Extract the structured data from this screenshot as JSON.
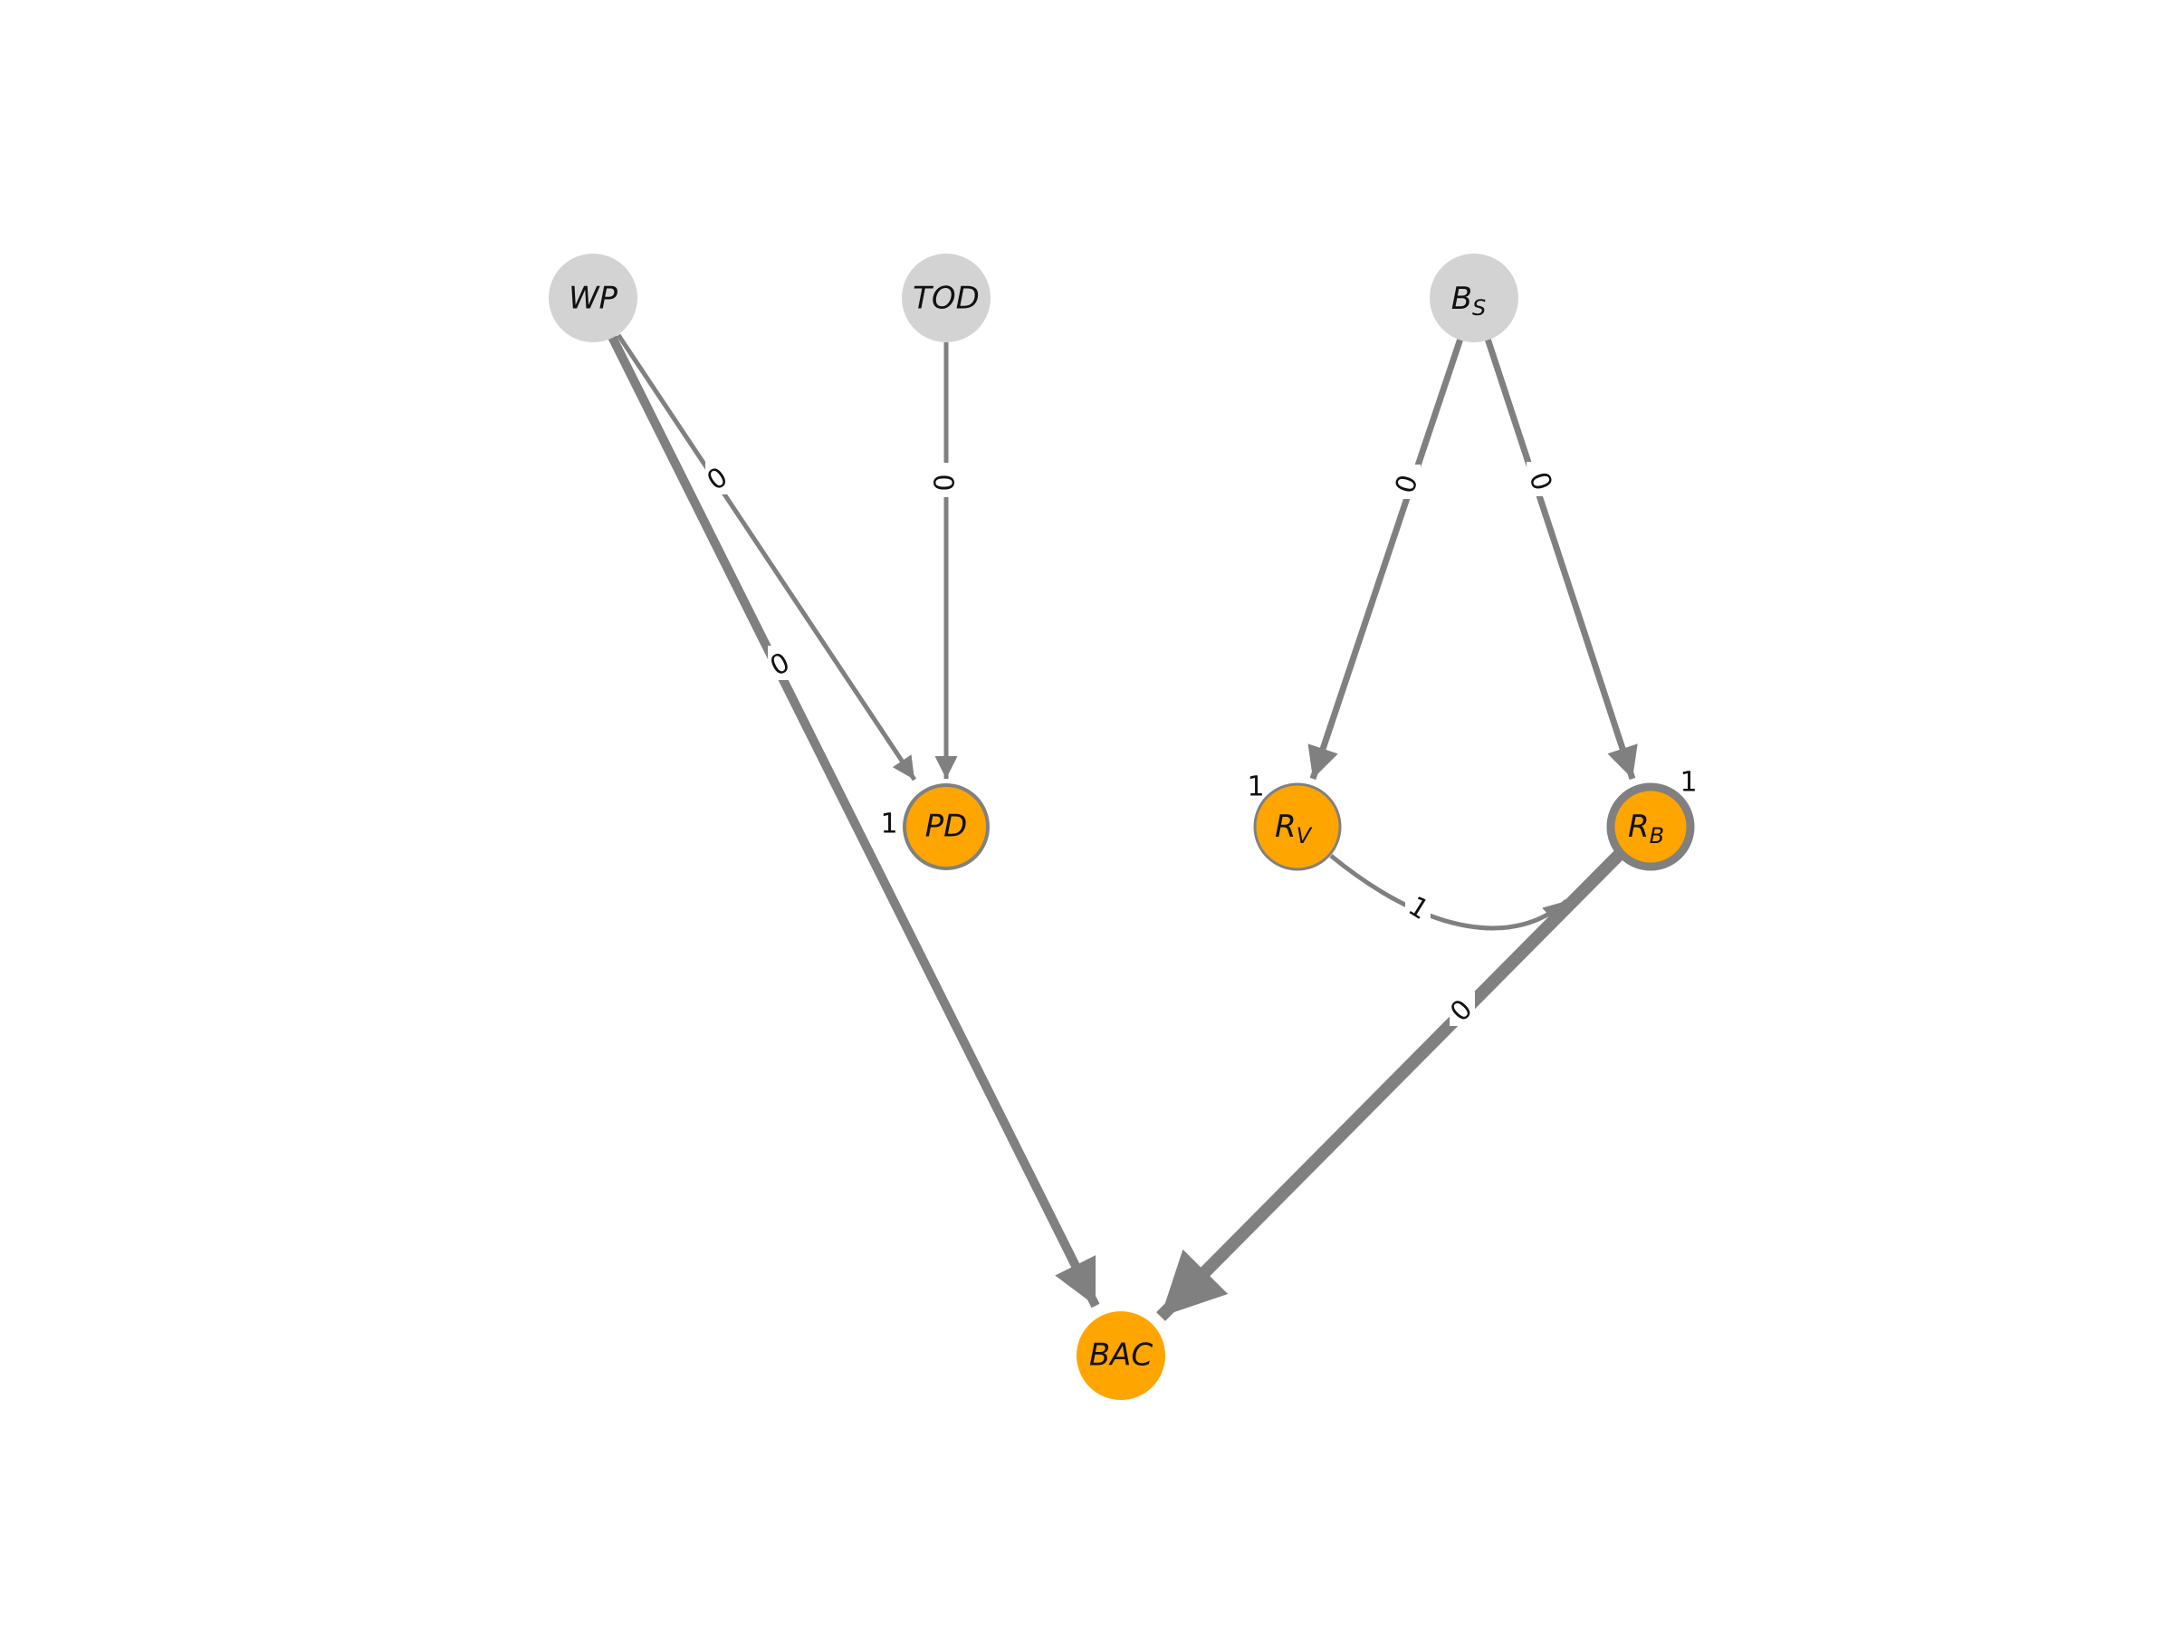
{
  "colors": {
    "observed_node": "#d3d3d3",
    "latent_node": "#ffa500",
    "edge": "#808080",
    "label_bg": "#ffffff"
  },
  "nodes": [
    {
      "id": "WP",
      "label": "WP",
      "sub": "",
      "kind": "observed"
    },
    {
      "id": "TOD",
      "label": "TOD",
      "sub": "",
      "kind": "observed"
    },
    {
      "id": "BS",
      "label": "B",
      "sub": "S",
      "kind": "observed"
    },
    {
      "id": "PD",
      "label": "PD",
      "sub": "",
      "kind": "latent",
      "self_loop": "1"
    },
    {
      "id": "RV",
      "label": "R",
      "sub": "V",
      "kind": "latent",
      "self_loop": "1"
    },
    {
      "id": "RB",
      "label": "R",
      "sub": "B",
      "kind": "latent",
      "self_loop": "1"
    },
    {
      "id": "BAC",
      "label": "BAC",
      "sub": "",
      "kind": "latent"
    }
  ],
  "edges": [
    {
      "from": "WP",
      "to": "PD",
      "label": "0"
    },
    {
      "from": "WP",
      "to": "BAC",
      "label": "0"
    },
    {
      "from": "TOD",
      "to": "PD",
      "label": "0"
    },
    {
      "from": "BS",
      "to": "RV",
      "label": "0"
    },
    {
      "from": "BS",
      "to": "RB",
      "label": "0"
    },
    {
      "from": "RV",
      "to": "RB",
      "label": "1"
    },
    {
      "from": "RB",
      "to": "BAC",
      "label": "0"
    }
  ]
}
